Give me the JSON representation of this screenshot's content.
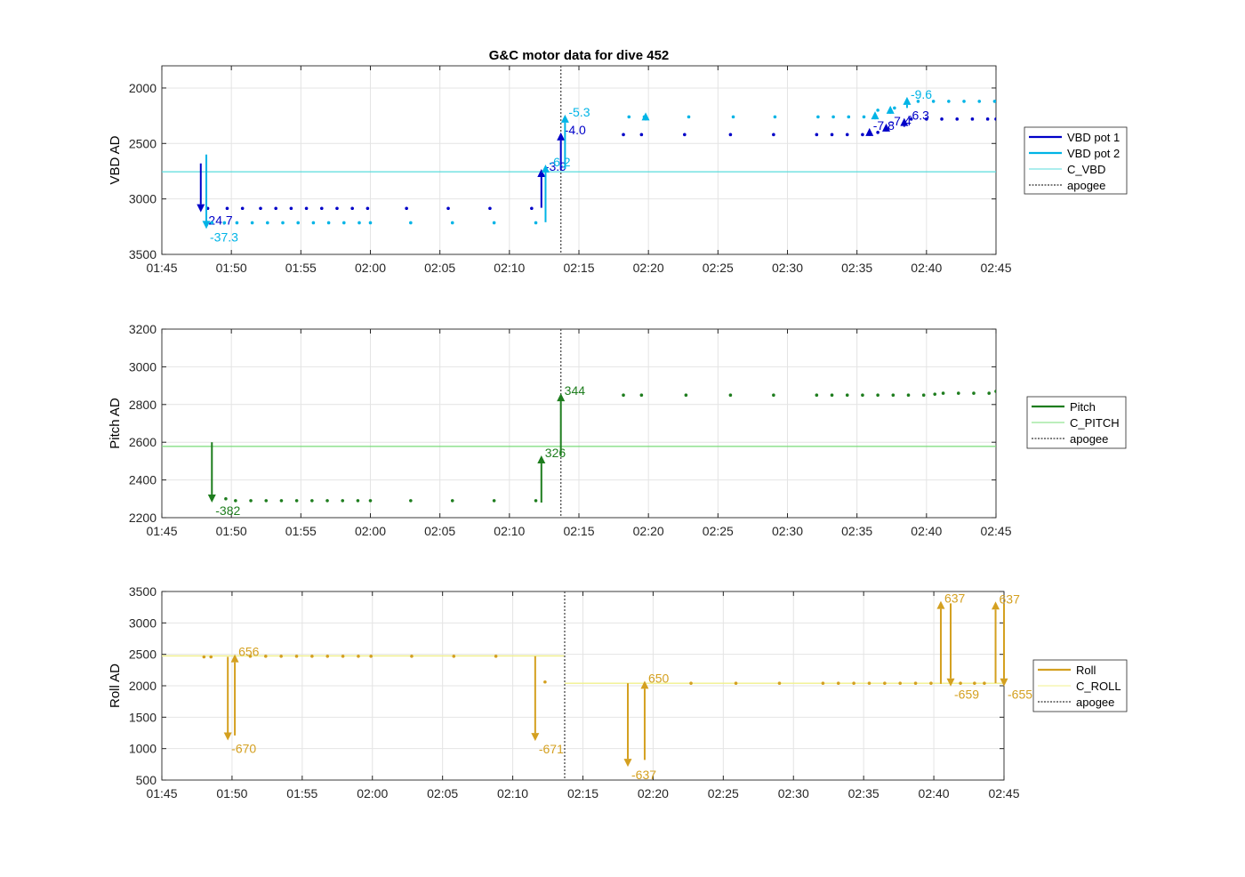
{
  "figure": {
    "title": "G&C motor data for dive 452"
  },
  "chart_data": [
    {
      "type": "scatter",
      "ylabel": "VBD AD",
      "xlabel": "",
      "x_unit": "HH:MM",
      "xlim": [
        "01:45",
        "02:45"
      ],
      "ylim": [
        3500,
        1800
      ],
      "y_reversed": true,
      "xticks": [
        "01:45",
        "01:50",
        "01:55",
        "02:00",
        "02:05",
        "02:10",
        "02:15",
        "02:20",
        "02:25",
        "02:30",
        "02:35",
        "02:40",
        "02:45"
      ],
      "yticks": [
        2000,
        2500,
        3000,
        3500
      ],
      "grid": true,
      "legend_position": "right",
      "legend": [
        {
          "label": "VBD pot 1",
          "color": "#0000c8",
          "style": "thick"
        },
        {
          "label": "VBD pot 2",
          "color": "#00b4e6",
          "style": "thick"
        },
        {
          "label": "C_VBD",
          "color": "#58dcdc",
          "style": "thin"
        },
        {
          "label": "apogee",
          "color": "#555555",
          "style": "dotted"
        }
      ],
      "reference_line": {
        "name": "C_VBD",
        "y": 2755,
        "color": "#58dcdc"
      },
      "apogee": "02:13.7",
      "series": [
        {
          "name": "VBD pot 1",
          "color": "#0000c8",
          "points": [
            [
              "01:48.3",
              3085
            ],
            [
              "01:49.7",
              3085
            ],
            [
              "01:50.8",
              3085
            ],
            [
              "01:52.1",
              3085
            ],
            [
              "01:53.2",
              3085
            ],
            [
              "01:54.3",
              3085
            ],
            [
              "01:55.4",
              3085
            ],
            [
              "01:56.5",
              3085
            ],
            [
              "01:57.6",
              3085
            ],
            [
              "01:58.7",
              3085
            ],
            [
              "01:59.8",
              3085
            ],
            [
              "02:02.6",
              3085
            ],
            [
              "02:05.6",
              3085
            ],
            [
              "02:08.6",
              3085
            ],
            [
              "02:11.6",
              3085
            ],
            [
              "02:18.2",
              2420
            ],
            [
              "02:19.5",
              2420
            ],
            [
              "02:22.6",
              2420
            ],
            [
              "02:25.9",
              2420
            ],
            [
              "02:29.0",
              2420
            ],
            [
              "02:32.1",
              2420
            ],
            [
              "02:33.2",
              2420
            ],
            [
              "02:34.3",
              2420
            ],
            [
              "02:35.4",
              2420
            ],
            [
              "02:36.5",
              2400
            ],
            [
              "02:38.9",
              2280
            ],
            [
              "02:40.0",
              2280
            ],
            [
              "02:41.1",
              2280
            ],
            [
              "02:42.2",
              2280
            ],
            [
              "02:43.3",
              2280
            ],
            [
              "02:44.4",
              2280
            ],
            [
              "02:45.0",
              2280
            ]
          ],
          "arrows": [
            {
              "x": "01:47.8",
              "y_from": 2680,
              "y_to": 3120,
              "label": "-24.7"
            },
            {
              "x": "02:12.3",
              "y_from": 3080,
              "y_to": 2730,
              "label": "-3.9"
            },
            {
              "x": "02:13.7",
              "y_from": 2740,
              "y_to": 2400,
              "label": "-4.0"
            },
            {
              "x": "02:35.9",
              "y_from": 2430,
              "y_to": 2360,
              "label": "-7.8"
            },
            {
              "x": "02:37.1",
              "y_from": 2390,
              "y_to": 2320,
              "label": "-7.4"
            },
            {
              "x": "02:38.4",
              "y_from": 2350,
              "y_to": 2270,
              "label": "-6.3"
            }
          ]
        },
        {
          "name": "VBD pot 2",
          "color": "#00b4e6",
          "points": [
            [
              "01:48.6",
              3215
            ],
            [
              "01:49.5",
              3215
            ],
            [
              "01:50.4",
              3215
            ],
            [
              "01:51.5",
              3215
            ],
            [
              "01:52.6",
              3215
            ],
            [
              "01:53.7",
              3215
            ],
            [
              "01:54.8",
              3215
            ],
            [
              "01:55.9",
              3215
            ],
            [
              "01:57.0",
              3215
            ],
            [
              "01:58.1",
              3215
            ],
            [
              "01:59.2",
              3215
            ],
            [
              "02:00.0",
              3215
            ],
            [
              "02:02.9",
              3215
            ],
            [
              "02:05.9",
              3215
            ],
            [
              "02:08.9",
              3215
            ],
            [
              "02:11.9",
              3215
            ],
            [
              "02:18.6",
              2260
            ],
            [
              "02:19.7",
              2260
            ],
            [
              "02:22.9",
              2260
            ],
            [
              "02:26.1",
              2260
            ],
            [
              "02:29.1",
              2260
            ],
            [
              "02:32.2",
              2260
            ],
            [
              "02:33.3",
              2260
            ],
            [
              "02:34.4",
              2260
            ],
            [
              "02:35.5",
              2260
            ],
            [
              "02:36.5",
              2200
            ],
            [
              "02:37.7",
              2180
            ],
            [
              "02:39.4",
              2120
            ],
            [
              "02:40.5",
              2120
            ],
            [
              "02:41.6",
              2120
            ],
            [
              "02:42.7",
              2120
            ],
            [
              "02:43.8",
              2120
            ],
            [
              "02:44.9",
              2120
            ]
          ],
          "arrows": [
            {
              "x": "01:48.2",
              "y_from": 2600,
              "y_to": 3270,
              "label": "-37.3"
            },
            {
              "x": "02:12.6",
              "y_from": 3210,
              "y_to": 2690,
              "label": "-6.2"
            },
            {
              "x": "02:14.0",
              "y_from": 2730,
              "y_to": 2240,
              "label": "-5.3"
            },
            {
              "x": "02:19.8",
              "y_from": 2245,
              "y_to": 2220,
              "label": ""
            },
            {
              "x": "02:36.3",
              "y_from": 2240,
              "y_to": 2210,
              "label": ""
            },
            {
              "x": "02:37.4",
              "y_from": 2200,
              "y_to": 2160,
              "label": ""
            },
            {
              "x": "02:38.6",
              "y_from": 2180,
              "y_to": 2080,
              "label": "-9.6"
            }
          ]
        }
      ]
    },
    {
      "type": "scatter",
      "ylabel": "Pitch AD",
      "xlabel": "",
      "x_unit": "HH:MM",
      "xlim": [
        "01:45",
        "02:45"
      ],
      "ylim": [
        2200,
        3200
      ],
      "xticks": [
        "01:45",
        "01:50",
        "01:55",
        "02:00",
        "02:05",
        "02:10",
        "02:15",
        "02:20",
        "02:25",
        "02:30",
        "02:35",
        "02:40",
        "02:45"
      ],
      "yticks": [
        2200,
        2400,
        2600,
        2800,
        3000,
        3200
      ],
      "grid": true,
      "legend_position": "right",
      "legend": [
        {
          "label": "Pitch",
          "color": "#1e7d1e",
          "style": "thick"
        },
        {
          "label": "C_PITCH",
          "color": "#78dc78",
          "style": "thin"
        },
        {
          "label": "apogee",
          "color": "#555555",
          "style": "dotted"
        }
      ],
      "reference_line": {
        "name": "C_PITCH",
        "y": 2578,
        "color": "#78dc78"
      },
      "apogee": "02:13.7",
      "series": [
        {
          "name": "Pitch",
          "color": "#1e7d1e",
          "points": [
            [
              "01:49.6",
              2300
            ],
            [
              "01:50.3",
              2290
            ],
            [
              "01:51.4",
              2290
            ],
            [
              "01:52.5",
              2290
            ],
            [
              "01:53.6",
              2290
            ],
            [
              "01:54.7",
              2290
            ],
            [
              "01:55.8",
              2290
            ],
            [
              "01:56.9",
              2290
            ],
            [
              "01:58.0",
              2290
            ],
            [
              "01:59.1",
              2290
            ],
            [
              "02:00.0",
              2290
            ],
            [
              "02:02.9",
              2290
            ],
            [
              "02:05.9",
              2290
            ],
            [
              "02:08.9",
              2290
            ],
            [
              "02:11.9",
              2290
            ],
            [
              "02:18.2",
              2850
            ],
            [
              "02:19.5",
              2850
            ],
            [
              "02:22.7",
              2850
            ],
            [
              "02:25.9",
              2850
            ],
            [
              "02:29.0",
              2850
            ],
            [
              "02:32.1",
              2850
            ],
            [
              "02:33.2",
              2850
            ],
            [
              "02:34.3",
              2850
            ],
            [
              "02:35.4",
              2850
            ],
            [
              "02:36.5",
              2850
            ],
            [
              "02:37.6",
              2850
            ],
            [
              "02:38.7",
              2850
            ],
            [
              "02:39.8",
              2850
            ],
            [
              "02:40.6",
              2855
            ],
            [
              "02:41.2",
              2860
            ],
            [
              "02:42.3",
              2860
            ],
            [
              "02:43.4",
              2860
            ],
            [
              "02:44.5",
              2860
            ],
            [
              "02:45.0",
              2870
            ]
          ],
          "arrows": [
            {
              "x": "01:48.6",
              "y_from": 2600,
              "y_to": 2280,
              "label": "-382"
            },
            {
              "x": "02:12.3",
              "y_from": 2280,
              "y_to": 2530,
              "label": "326"
            },
            {
              "x": "02:13.7",
              "y_from": 2530,
              "y_to": 2860,
              "label": "344"
            }
          ]
        }
      ]
    },
    {
      "type": "scatter",
      "ylabel": "Roll AD",
      "xlabel": "",
      "x_unit": "HH:MM",
      "xlim": [
        "01:45",
        "02:45"
      ],
      "ylim": [
        500,
        3500
      ],
      "xticks": [
        "01:45",
        "01:50",
        "01:55",
        "02:00",
        "02:05",
        "02:10",
        "02:15",
        "02:20",
        "02:25",
        "02:30",
        "02:35",
        "02:40",
        "02:45"
      ],
      "yticks": [
        500,
        1000,
        1500,
        2000,
        2500,
        3000,
        3500
      ],
      "grid": true,
      "legend_position": "right",
      "legend": [
        {
          "label": "Roll",
          "color": "#d4a020",
          "style": "thick"
        },
        {
          "label": "C_ROLL",
          "color": "#f0f08c",
          "style": "thin"
        },
        {
          "label": "apogee",
          "color": "#555555",
          "style": "dotted"
        }
      ],
      "reference_segments": [
        {
          "name": "C_ROLL",
          "x_from": "01:45",
          "x_to": "02:13.7",
          "y": 2475,
          "color": "#f0f08c"
        },
        {
          "name": "C_ROLL",
          "x_from": "02:13.7",
          "x_to": "02:45",
          "y": 2040,
          "color": "#f0f08c"
        }
      ],
      "apogee": "02:13.7",
      "series": [
        {
          "name": "Roll",
          "color": "#d4a020",
          "points": [
            [
              "01:48.0",
              2460
            ],
            [
              "01:48.5",
              2460
            ],
            [
              "01:51.3",
              2470
            ],
            [
              "01:52.4",
              2470
            ],
            [
              "01:53.5",
              2470
            ],
            [
              "01:54.6",
              2470
            ],
            [
              "01:55.7",
              2470
            ],
            [
              "01:56.8",
              2470
            ],
            [
              "01:57.9",
              2470
            ],
            [
              "01:59.0",
              2470
            ],
            [
              "01:59.9",
              2470
            ],
            [
              "02:02.8",
              2470
            ],
            [
              "02:05.8",
              2470
            ],
            [
              "02:08.8",
              2470
            ],
            [
              "02:12.3",
              2060
            ],
            [
              "02:22.7",
              2040
            ],
            [
              "02:25.9",
              2040
            ],
            [
              "02:29.0",
              2040
            ],
            [
              "02:32.1",
              2040
            ],
            [
              "02:33.2",
              2040
            ],
            [
              "02:34.3",
              2040
            ],
            [
              "02:35.4",
              2040
            ],
            [
              "02:36.5",
              2040
            ],
            [
              "02:37.6",
              2040
            ],
            [
              "02:38.7",
              2040
            ],
            [
              "02:39.8",
              2040
            ],
            [
              "02:41.9",
              2040
            ],
            [
              "02:42.9",
              2040
            ],
            [
              "02:43.6",
              2040
            ]
          ],
          "arrows": [
            {
              "x": "01:49.7",
              "y_from": 2460,
              "y_to": 1130,
              "label": "-670"
            },
            {
              "x": "01:50.2",
              "y_from": 1210,
              "y_to": 2500,
              "label": "656"
            },
            {
              "x": "02:11.6",
              "y_from": 2470,
              "y_to": 1120,
              "label": "-671"
            },
            {
              "x": "02:18.2",
              "y_from": 2040,
              "y_to": 710,
              "label": "-637"
            },
            {
              "x": "02:19.4",
              "y_from": 820,
              "y_to": 2080,
              "label": "650"
            },
            {
              "x": "02:40.5",
              "y_from": 2030,
              "y_to": 3350,
              "label": "637"
            },
            {
              "x": "02:41.2",
              "y_from": 3310,
              "y_to": 1990,
              "label": "-659"
            },
            {
              "x": "02:44.4",
              "y_from": 2040,
              "y_to": 3340,
              "label": "637"
            },
            {
              "x": "02:45.0",
              "y_from": 3300,
              "y_to": 1990,
              "label": "-655"
            }
          ]
        }
      ]
    }
  ]
}
